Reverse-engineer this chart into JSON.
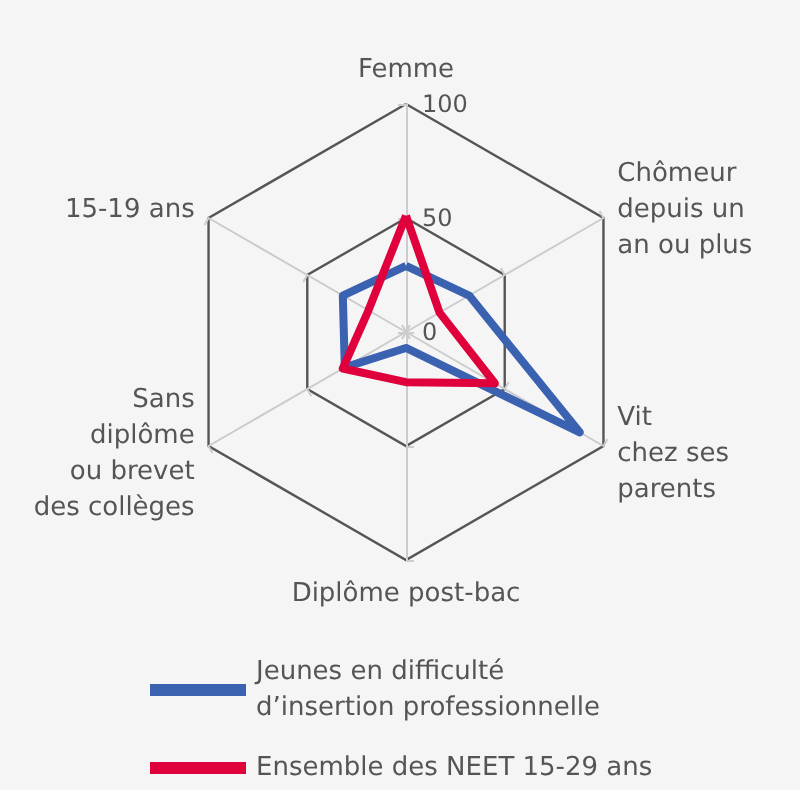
{
  "chart_data": {
    "type": "radar",
    "categories": [
      "Femme",
      "Chômeur\ndepuis un\nan ou plus",
      "Vit\nchez ses\nparents",
      "Diplôme post-bac",
      "Sans\ndiplôme\nou brevet\ndes collèges",
      "15-19 ans"
    ],
    "series": [
      {
        "name": "Jeunes en difficulté\nd’insertion professionnelle",
        "color": "#3a62b0",
        "values": [
          29,
          32,
          88,
          7,
          31,
          32
        ]
      },
      {
        "name": "Ensemble des NEET 15-29 ans",
        "color": "#e0003c",
        "values": [
          51,
          17,
          45,
          22,
          32,
          19
        ]
      }
    ],
    "ylim": [
      0,
      100
    ],
    "yticks": [
      0,
      50,
      100
    ],
    "legend": "bottom"
  }
}
